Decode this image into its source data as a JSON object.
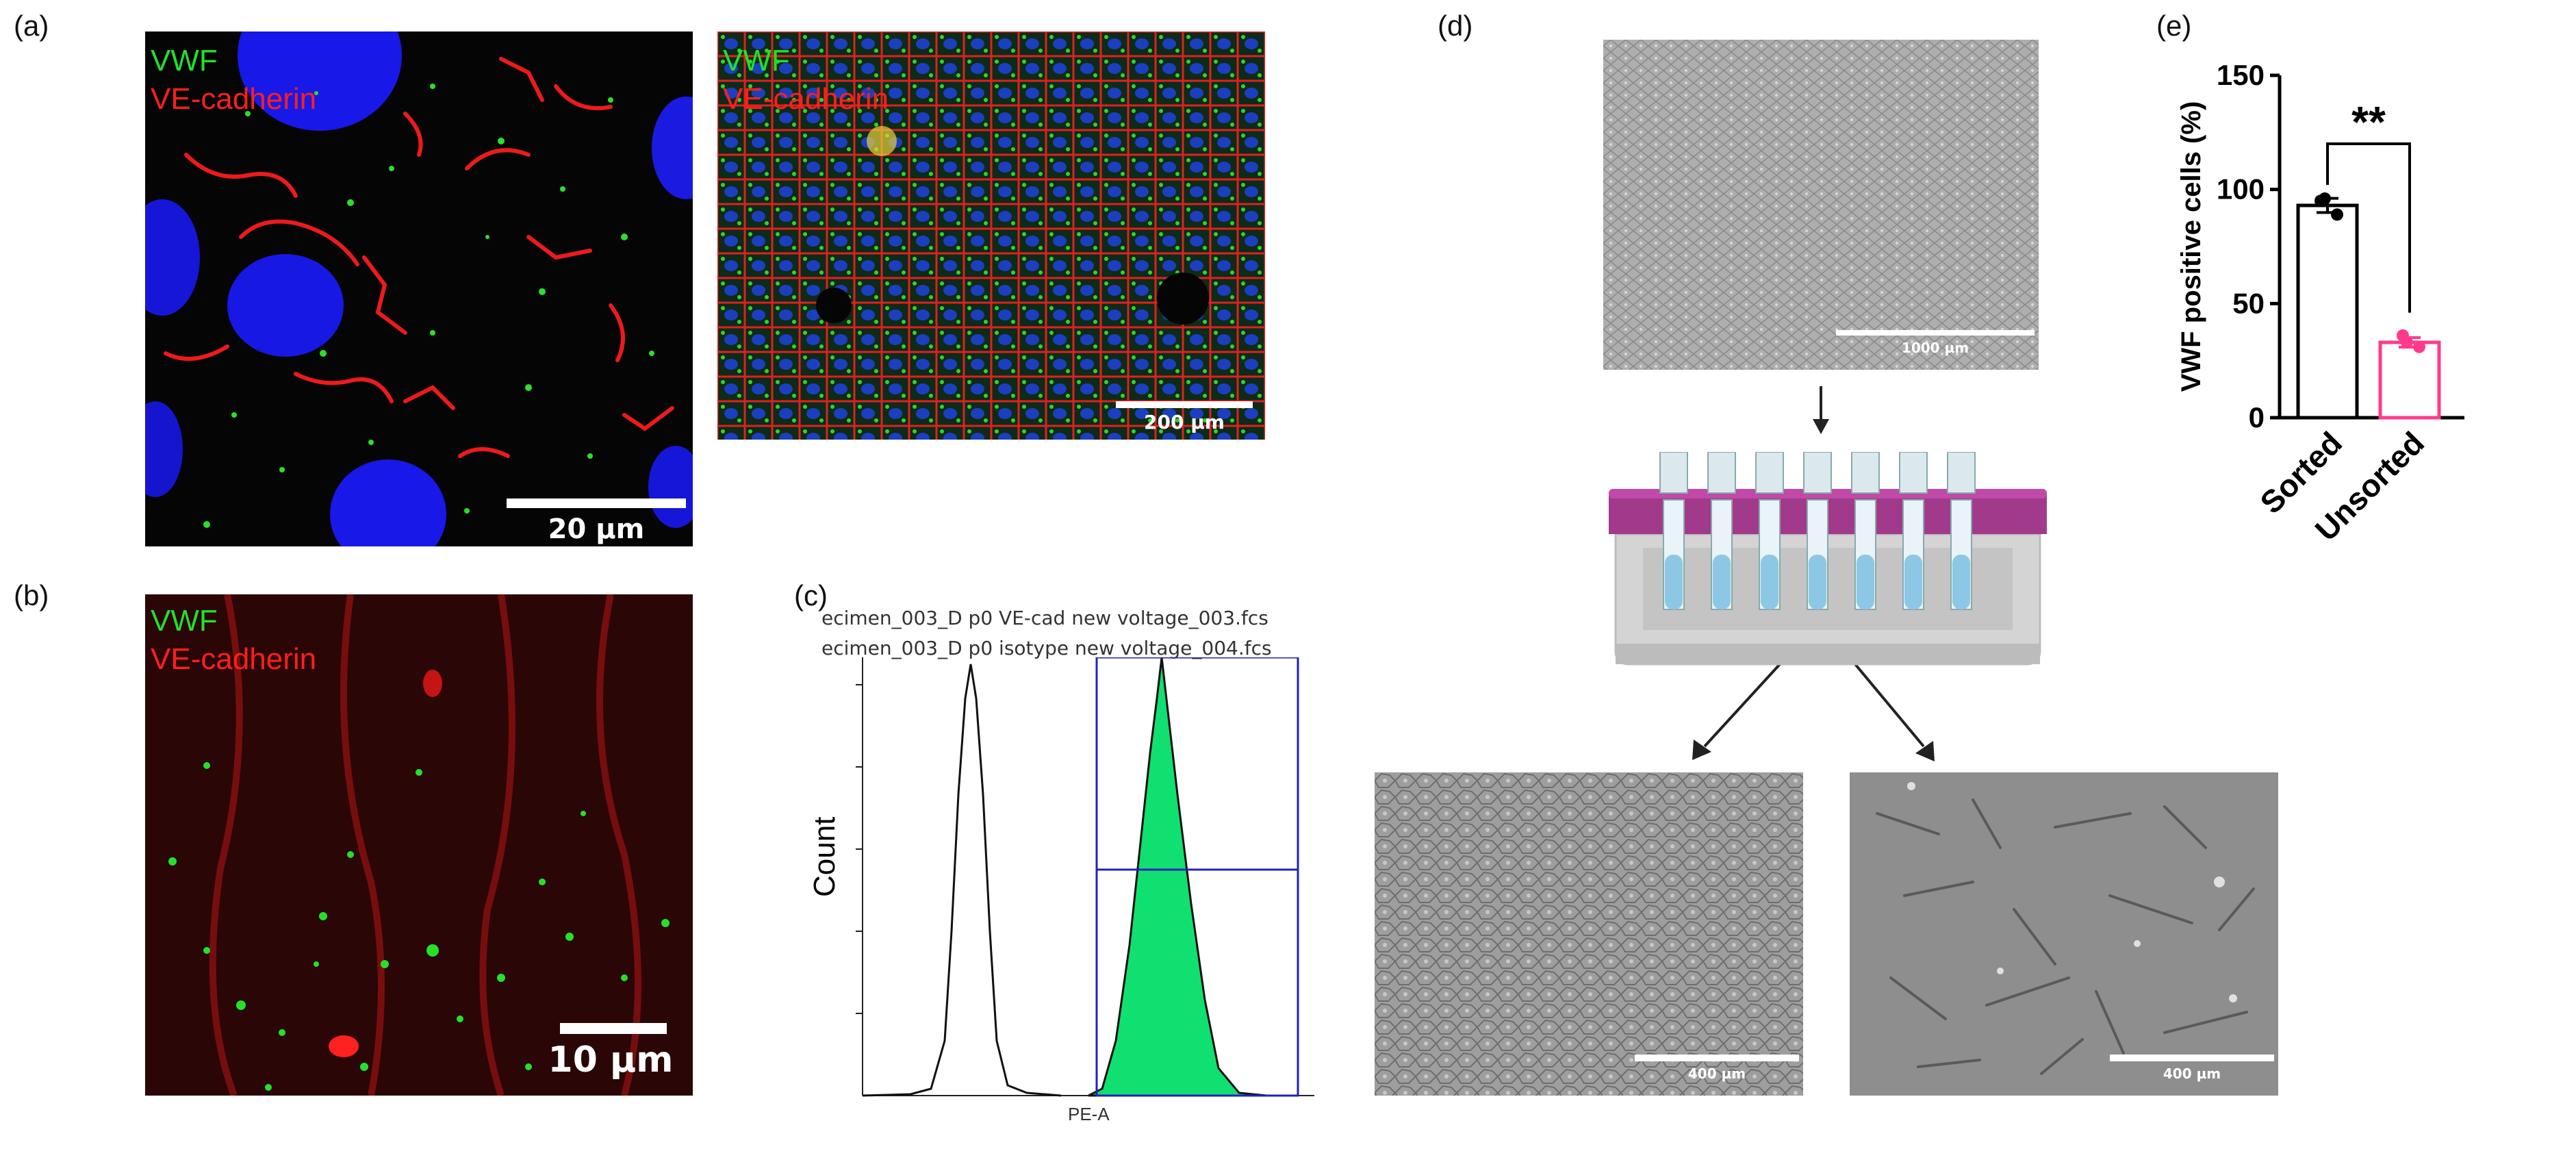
{
  "panels": {
    "a": {
      "letter": "(a)",
      "left_image": {
        "label_vwf": "VWF",
        "label_vecad": "VE-cadherin",
        "scale": "20 µm"
      },
      "right_image": {
        "label_vwf": "VWF",
        "label_vecad": "VE-cadherin",
        "scale": "200 µm"
      }
    },
    "b": {
      "letter": "(b)",
      "image": {
        "label_vwf": "VWF",
        "label_vecad": "VE-cadherin",
        "scale": "10 µm"
      }
    },
    "c": {
      "letter": "(c)",
      "legend": [
        "ecimen_003_D p0 VE-cad new voltage_003.fcs",
        "ecimen_003_D p0 isotype new voltage_004.fcs"
      ],
      "ylabel": "Count",
      "xlabel": "PE-A"
    },
    "d": {
      "letter": "(d)",
      "top_scale": "1000 µm",
      "bottom_left_scale": "400 µm",
      "bottom_right_scale": "400 µm"
    },
    "e": {
      "letter": "(e)"
    }
  },
  "colors": {
    "vwf_green": "#22e02a",
    "vecad_red": "#ff1e1e",
    "dapi_blue": "#1a1aff",
    "histogram_fill": "#10e070",
    "gate_blue": "#2020c0",
    "sorted_bar": "#000000",
    "unsorted_bar": "#ff3a8c"
  },
  "chart_data": [
    {
      "type": "bar",
      "categories": [
        "Sorted",
        "Unsorted"
      ],
      "values": [
        93,
        33
      ],
      "points": [
        [
          95,
          89,
          96
        ],
        [
          36,
          31,
          33
        ]
      ],
      "ylabel": "VWF positive cells (%)",
      "ylim": [
        0,
        150
      ],
      "yticks": [
        0,
        50,
        100,
        150
      ],
      "significance": "**"
    }
  ]
}
